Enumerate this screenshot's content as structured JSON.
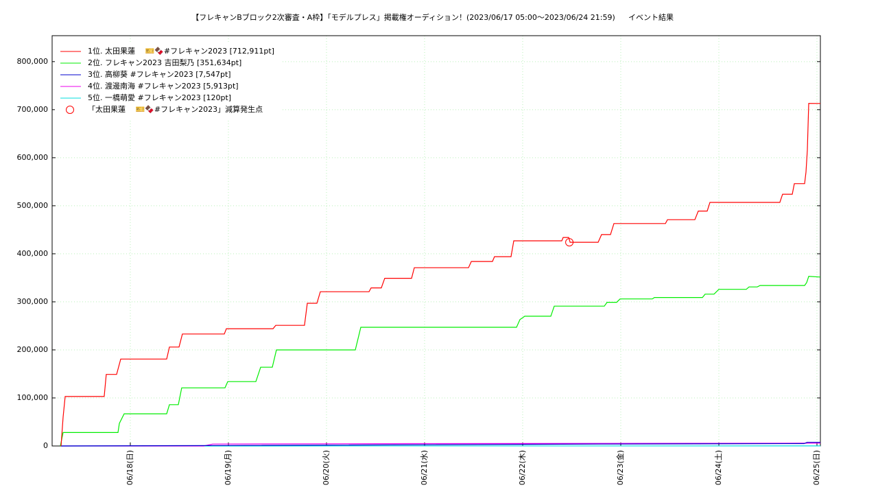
{
  "chart_data": {
    "type": "line",
    "title": "【フレキャンBブロック2次審査・A枠】「モデルプレス」掲載権オーディション！(2023/06/17 05:00〜2023/06/24 21:59)",
    "subtitle": "イベント結果",
    "xlim": [
      17.203,
      25.035
    ],
    "ylim": [
      0,
      854000
    ],
    "grid": true,
    "legend": "upper-left",
    "xticks": [
      {
        "value": 18,
        "label": "06/18(日)"
      },
      {
        "value": 19,
        "label": "06/19(月)"
      },
      {
        "value": 20,
        "label": "06/20(火)"
      },
      {
        "value": 21,
        "label": "06/21(水)"
      },
      {
        "value": 22,
        "label": "06/22(木)"
      },
      {
        "value": 23,
        "label": "06/23(金)"
      },
      {
        "value": 24,
        "label": "06/24(土)"
      },
      {
        "value": 25,
        "label": "06/25(日)"
      }
    ],
    "yticks": [
      0,
      {
        "value": 100000,
        "label": "100,000"
      },
      {
        "value": 200000,
        "label": "200,000"
      },
      {
        "value": 300000,
        "label": "300,000"
      },
      {
        "value": 400000,
        "label": "400,000"
      },
      {
        "value": 500000,
        "label": "500,000"
      },
      {
        "value": 600000,
        "label": "600,000"
      },
      {
        "value": 700000,
        "label": "700,000"
      },
      {
        "value": 800000,
        "label": "800,000"
      }
    ],
    "series": [
      {
        "name": "1位. 太田果蓮　 🎫🍫#フレキャン2023 [712,911pt]",
        "color": "#ff0000",
        "x": [
          17.294,
          17.315,
          17.336,
          17.734,
          17.755,
          17.86,
          17.881,
          17.902,
          18.371,
          18.399,
          18.497,
          18.531,
          18.958,
          18.979,
          19.455,
          19.483,
          19.776,
          19.804,
          19.902,
          19.937,
          20.434,
          20.455,
          20.559,
          20.594,
          20.867,
          20.895,
          21.448,
          21.476,
          21.692,
          21.713,
          21.881,
          21.909,
          22.399,
          22.413,
          22.469,
          22.483,
          22.769,
          22.804,
          22.895,
          22.93,
          23.455,
          23.476,
          23.755,
          23.79,
          23.881,
          23.909,
          24.622,
          24.65,
          24.748,
          24.769,
          24.874,
          24.888,
          24.902,
          24.916,
          25.035
        ],
        "values": [
          0,
          60000,
          103000,
          103000,
          149000,
          149000,
          165000,
          181000,
          181000,
          206000,
          206000,
          233000,
          233000,
          244000,
          244000,
          251000,
          251000,
          297000,
          297000,
          321000,
          321000,
          329000,
          329000,
          349000,
          349000,
          371000,
          371000,
          384000,
          384000,
          394000,
          394000,
          427000,
          427000,
          434000,
          434000,
          424000,
          424000,
          440000,
          440000,
          463000,
          463000,
          471000,
          471000,
          489000,
          489000,
          507000,
          507000,
          524000,
          524000,
          546000,
          546000,
          570000,
          616000,
          713000,
          712911
        ]
      },
      {
        "name": "2位. フレキャン2023 吉田梨乃 [351,634pt]",
        "color": "#00ee00",
        "x": [
          17.287,
          17.315,
          17.874,
          17.888,
          17.937,
          18.371,
          18.399,
          18.49,
          18.524,
          18.965,
          18.993,
          19.28,
          19.329,
          19.448,
          19.49,
          20.294,
          20.35,
          21.937,
          21.972,
          22.021,
          22.287,
          22.322,
          22.832,
          22.86,
          22.958,
          22.993,
          23.322,
          23.343,
          23.832,
          23.86,
          23.951,
          24.0,
          24.28,
          24.308,
          24.392,
          24.42,
          24.874,
          24.895,
          24.916,
          25.035
        ],
        "values": [
          0,
          28000,
          28000,
          47000,
          67000,
          67000,
          86000,
          86000,
          121000,
          121000,
          134000,
          134000,
          164000,
          164000,
          200000,
          200000,
          247000,
          247000,
          263000,
          270000,
          270000,
          291000,
          291000,
          299000,
          299000,
          306000,
          306000,
          309000,
          309000,
          316000,
          316000,
          326000,
          326000,
          331000,
          331000,
          334000,
          334000,
          340000,
          353000,
          351634
        ]
      },
      {
        "name": "3位. 高柳葵 #フレキャン2023 [7,547pt]",
        "color": "#0000cc",
        "x": [
          17.294,
          19.0,
          22.8,
          24.87,
          24.9,
          25.035
        ],
        "values": [
          0,
          1000,
          4000,
          5000,
          7547,
          7547
        ]
      },
      {
        "name": "4位. 渡邊南海 #フレキャン2023 [5,913pt]",
        "color": "#ee00ee",
        "x": [
          17.294,
          18.748,
          18.84,
          20.83,
          23.9,
          25.035
        ],
        "values": [
          0,
          0,
          4000,
          5000,
          5500,
          5913
        ]
      },
      {
        "name": "5位. 一橋萌愛 #フレキャン2023 [120pt]",
        "color": "#00dddd",
        "x": [
          17.294,
          25.035
        ],
        "values": [
          0,
          120
        ]
      }
    ],
    "markers": {
      "name": "「太田果蓮　 🎫🍫#フレキャン2023」減算発生点",
      "color": "#ff0000",
      "x": [
        22.476
      ],
      "values": [
        424000
      ]
    }
  }
}
